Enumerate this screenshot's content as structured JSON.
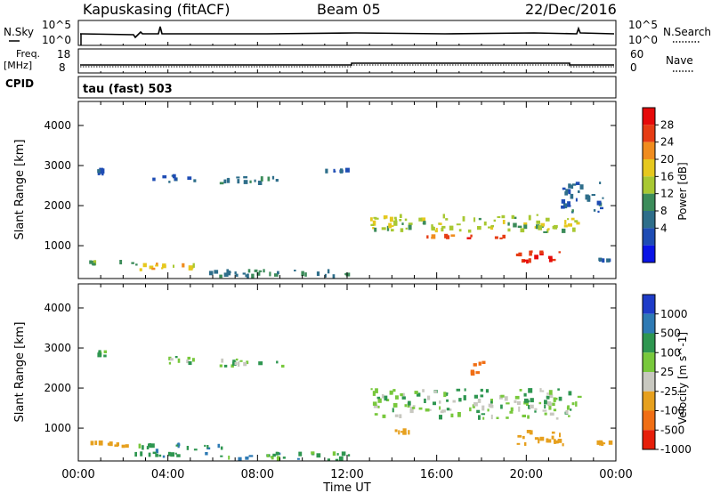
{
  "header": {
    "station": "Kapuskasing (fitACF)",
    "beam": "Beam 05",
    "date": "22/Dec/2016"
  },
  "noise_panel": {
    "left_title": "N.Sky",
    "right_title": "N.Search",
    "left_ticks": [
      "10^5",
      "10^0"
    ],
    "right_ticks": [
      "10^5",
      "10^0"
    ]
  },
  "freq_panel": {
    "left_title_1": "Freq.",
    "left_title_2": "[MHz]",
    "right_title": "Nave",
    "left_ticks": [
      "18",
      "8"
    ],
    "right_ticks": [
      "60",
      "0"
    ]
  },
  "cpid": {
    "label": "CPID",
    "text": "tau (fast) 503"
  },
  "axes": {
    "ylabel": "Slant Range [km]",
    "xlabel": "Time UT",
    "y_ticks": [
      "1000",
      "2000",
      "3000",
      "4000"
    ],
    "x_ticks": [
      "00:00",
      "04:00",
      "08:00",
      "12:00",
      "16:00",
      "20:00",
      "00:00"
    ]
  },
  "power_scale": {
    "label": "Power [dB]",
    "ticks": [
      "4",
      "8",
      "12",
      "16",
      "20",
      "24",
      "28"
    ],
    "colors": [
      "#0a14e6",
      "#1e4cb4",
      "#2e6e8a",
      "#3c8c5a",
      "#a8c832",
      "#e6c81e",
      "#f08c1e",
      "#e63c14",
      "#e60a0a"
    ]
  },
  "velocity_scale": {
    "label": "Velocity [m s^-1]",
    "ticks": [
      "1000",
      "500",
      "100",
      "25",
      "-25",
      "-100",
      "-500",
      "-1000"
    ],
    "colors": [
      "#1e3cc8",
      "#2e7ab4",
      "#2e9650",
      "#78c83c",
      "#c8c8c0",
      "#e6a01e",
      "#f06e14",
      "#e61e0a"
    ]
  },
  "chart_data": [
    {
      "type": "heatmap",
      "title": "Power",
      "xlabel": "Time UT",
      "ylabel": "Slant Range [km]",
      "xlim": [
        0,
        24
      ],
      "ylim": [
        180,
        4600
      ],
      "colorbar": {
        "label": "Power [dB]",
        "range": [
          0,
          32
        ]
      },
      "regions": [
        {
          "t": [
            0.2,
            2.8
          ],
          "r": [
            500,
            650
          ],
          "v": 14
        },
        {
          "t": [
            2.5,
            5.5
          ],
          "r": [
            350,
            600
          ],
          "v": 20
        },
        {
          "t": [
            5.5,
            12.2
          ],
          "r": [
            180,
            420
          ],
          "v": 10
        },
        {
          "t": [
            0.8,
            1.3
          ],
          "r": [
            2750,
            2950
          ],
          "v": 6
        },
        {
          "t": [
            3.3,
            5.3
          ],
          "r": [
            2550,
            2800
          ],
          "v": 8
        },
        {
          "t": [
            6.3,
            9.5
          ],
          "r": [
            2500,
            2750
          ],
          "v": 10
        },
        {
          "t": [
            10.8,
            12.2
          ],
          "r": [
            2800,
            2950
          ],
          "v": 8
        },
        {
          "t": [
            13.0,
            22.5
          ],
          "r": [
            1300,
            1800
          ],
          "v": 16
        },
        {
          "t": [
            15.5,
            19.5
          ],
          "r": [
            1150,
            1300
          ],
          "v": 26
        },
        {
          "t": [
            19.5,
            21.8
          ],
          "r": [
            550,
            900
          ],
          "v": 30
        },
        {
          "t": [
            21.5,
            23.5
          ],
          "r": [
            1800,
            2600
          ],
          "v": 8
        },
        {
          "t": [
            23.0,
            24.0
          ],
          "r": [
            550,
            700
          ],
          "v": 6
        }
      ]
    },
    {
      "type": "heatmap",
      "title": "Velocity",
      "xlabel": "Time UT",
      "ylabel": "Slant Range [km]",
      "xlim": [
        0,
        24
      ],
      "ylim": [
        180,
        4600
      ],
      "colorbar": {
        "label": "Velocity [m s^-1]",
        "range": [
          -1000,
          1000
        ]
      },
      "regions": [
        {
          "t": [
            0.2,
            2.8
          ],
          "r": [
            500,
            700
          ],
          "v": -150
        },
        {
          "t": [
            2.5,
            6.5
          ],
          "r": [
            250,
            650
          ],
          "v": 80
        },
        {
          "t": [
            6.5,
            12.2
          ],
          "r": [
            180,
            420
          ],
          "v": 60
        },
        {
          "t": [
            0.8,
            1.3
          ],
          "r": [
            2750,
            2950
          ],
          "v": 0
        },
        {
          "t": [
            3.3,
            5.3
          ],
          "r": [
            2550,
            2800
          ],
          "v": 0
        },
        {
          "t": [
            6.3,
            9.5
          ],
          "r": [
            2500,
            2750
          ],
          "v": 0
        },
        {
          "t": [
            13.0,
            22.5
          ],
          "r": [
            1200,
            2000
          ],
          "v": 0
        },
        {
          "t": [
            14.0,
            15.0
          ],
          "r": [
            750,
            1000
          ],
          "v": -300
        },
        {
          "t": [
            17.5,
            18.2
          ],
          "r": [
            2300,
            2700
          ],
          "v": -600
        },
        {
          "t": [
            19.5,
            21.8
          ],
          "r": [
            550,
            1000
          ],
          "v": -400
        },
        {
          "t": [
            23.0,
            24.0
          ],
          "r": [
            550,
            700
          ],
          "v": -200
        }
      ]
    }
  ]
}
